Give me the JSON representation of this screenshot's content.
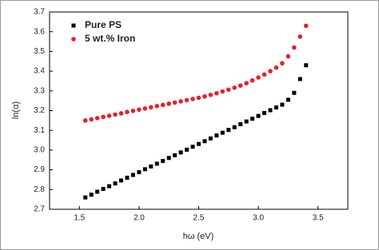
{
  "chart_data": {
    "type": "scatter",
    "xlabel": "hω (eV)",
    "ylabel": "ln(α)",
    "xlim": [
      1.25,
      3.75
    ],
    "ylim": [
      2.7,
      3.7
    ],
    "xticks": [
      1.5,
      {
        "value": 2,
        "label": "2.0"
      },
      2.5,
      {
        "value": 3,
        "label": "3.0"
      },
      3.5
    ],
    "yticks": [
      2.7,
      2.8,
      2.9,
      {
        "value": 3,
        "label": "3.0"
      },
      3.1,
      3.2,
      3.3,
      3.4,
      3.5,
      3.6,
      3.7
    ],
    "legend": "upper left",
    "x": [
      1.55,
      1.6,
      1.65,
      1.7,
      1.75,
      1.8,
      1.85,
      1.9,
      1.95,
      2.0,
      2.05,
      2.1,
      2.15,
      2.2,
      2.25,
      2.3,
      2.35,
      2.4,
      2.45,
      2.5,
      2.55,
      2.6,
      2.65,
      2.7,
      2.75,
      2.8,
      2.85,
      2.9,
      2.95,
      3.0,
      3.05,
      3.1,
      3.15,
      3.2,
      3.25,
      3.3,
      3.35,
      3.4
    ],
    "series": [
      {
        "name": "Pure PS",
        "color": "#000000",
        "marker": "square",
        "values": [
          2.76,
          2.774,
          2.789,
          2.803,
          2.817,
          2.831,
          2.846,
          2.86,
          2.874,
          2.888,
          2.903,
          2.917,
          2.931,
          2.945,
          2.96,
          2.974,
          2.988,
          3.002,
          3.017,
          3.031,
          3.045,
          3.059,
          3.074,
          3.088,
          3.102,
          3.116,
          3.131,
          3.145,
          3.159,
          3.173,
          3.188,
          3.202,
          3.216,
          3.23,
          3.255,
          3.29,
          3.36,
          3.43
        ]
      },
      {
        "name": "5 wt.% Iron",
        "color": "#e8202a",
        "marker": "circle",
        "values": [
          3.15,
          3.156,
          3.162,
          3.168,
          3.174,
          3.18,
          3.186,
          3.193,
          3.199,
          3.205,
          3.211,
          3.217,
          3.223,
          3.229,
          3.235,
          3.241,
          3.247,
          3.253,
          3.259,
          3.265,
          3.272,
          3.28,
          3.288,
          3.297,
          3.306,
          3.316,
          3.327,
          3.339,
          3.353,
          3.368,
          3.383,
          3.4,
          3.418,
          3.44,
          3.475,
          3.52,
          3.575,
          3.63
        ]
      }
    ]
  }
}
